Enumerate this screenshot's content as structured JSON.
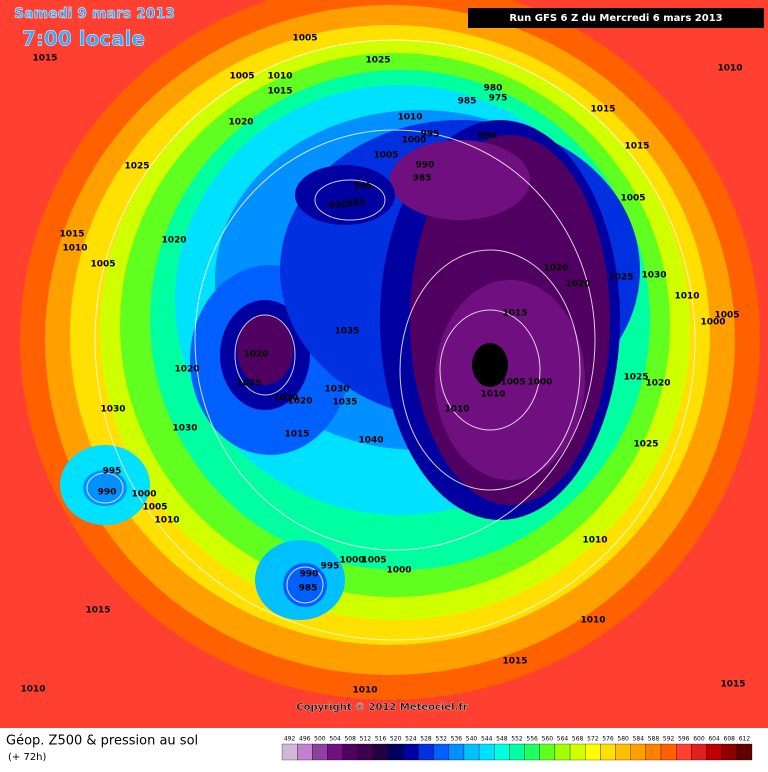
{
  "header": {
    "date": "Samedi 9 mars 2013",
    "time": "7:00 locale",
    "run": "Run GFS 6 Z du Mercredi 6 mars 2013"
  },
  "footer": {
    "title": "Géop. Z500 & pression au sol",
    "lead": "(+ 72h)",
    "copyright": "Copyright © 2012 Meteociel.fr"
  },
  "legend": {
    "levels": [
      492,
      496,
      500,
      504,
      508,
      512,
      516,
      520,
      524,
      528,
      532,
      536,
      540,
      544,
      548,
      552,
      556,
      560,
      564,
      568,
      572,
      576,
      580,
      584,
      588,
      592,
      596,
      600,
      604,
      608,
      612
    ],
    "colors": [
      "#d0b8d8",
      "#c080d0",
      "#9040a0",
      "#701080",
      "#500060",
      "#400050",
      "#200040",
      "#000060",
      "#0000a0",
      "#0030e0",
      "#0060ff",
      "#0090ff",
      "#00c0ff",
      "#00e0ff",
      "#00ffe0",
      "#00ffa0",
      "#20ff60",
      "#60ff20",
      "#a0ff00",
      "#d0ff00",
      "#ffff00",
      "#ffe000",
      "#ffc000",
      "#ffa000",
      "#ff8000",
      "#ff6000",
      "#ff4030",
      "#e02020",
      "#c00000",
      "#900000",
      "#600000"
    ]
  },
  "isobar_labels": [
    "1005",
    "1015",
    "1025",
    "1005",
    "1010",
    "1015",
    "1010",
    "1020",
    "980",
    "975",
    "985",
    "1015",
    "1010",
    "995",
    "1000",
    "990",
    "1015",
    "1005",
    "990",
    "985",
    "995",
    "990",
    "985",
    "1025",
    "1005",
    "1015",
    "1010",
    "1020",
    "1005",
    "1020",
    "1020",
    "1025",
    "1030",
    "1010",
    "1005",
    "1000",
    "1015",
    "1035",
    "1020",
    "1025",
    "1030",
    "1020",
    "1005",
    "1000",
    "1010",
    "1025",
    "1020",
    "1020",
    "1020",
    "1035",
    "1010",
    "1030",
    "1030",
    "1015",
    "1040",
    "1025",
    "995",
    "990",
    "1000",
    "1005",
    "1010",
    "1010",
    "990",
    "985",
    "995",
    "1000",
    "1005",
    "1000",
    "1010",
    "1015",
    "1015",
    "1010",
    "1010",
    "1015"
  ]
}
